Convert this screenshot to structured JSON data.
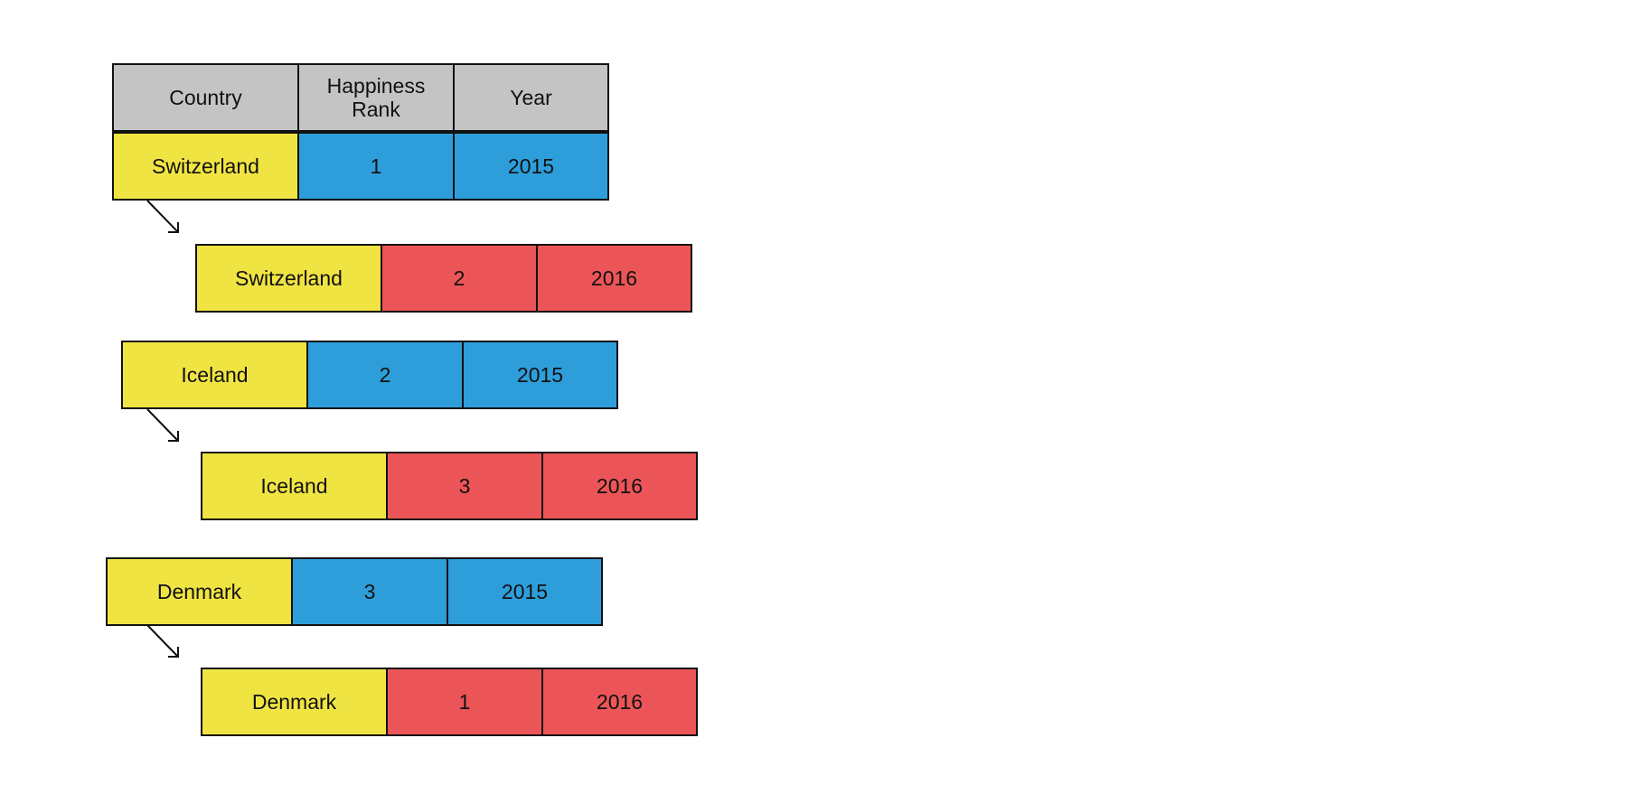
{
  "colors": {
    "header": "#c4c4c4",
    "country": "#f0e443",
    "year_2015": "#2e9edb",
    "year_2016": "#ec5558",
    "border": "#111111"
  },
  "header": {
    "country": "Country",
    "rank": "Happiness Rank",
    "year": "Year"
  },
  "rows": [
    {
      "country": "Switzerland",
      "rank": "1",
      "year": "2015"
    },
    {
      "country": "Switzerland",
      "rank": "2",
      "year": "2016"
    },
    {
      "country": "Iceland",
      "rank": "2",
      "year": "2015"
    },
    {
      "country": "Iceland",
      "rank": "3",
      "year": "2016"
    },
    {
      "country": "Denmark",
      "rank": "3",
      "year": "2015"
    },
    {
      "country": "Denmark",
      "rank": "1",
      "year": "2016"
    }
  ]
}
